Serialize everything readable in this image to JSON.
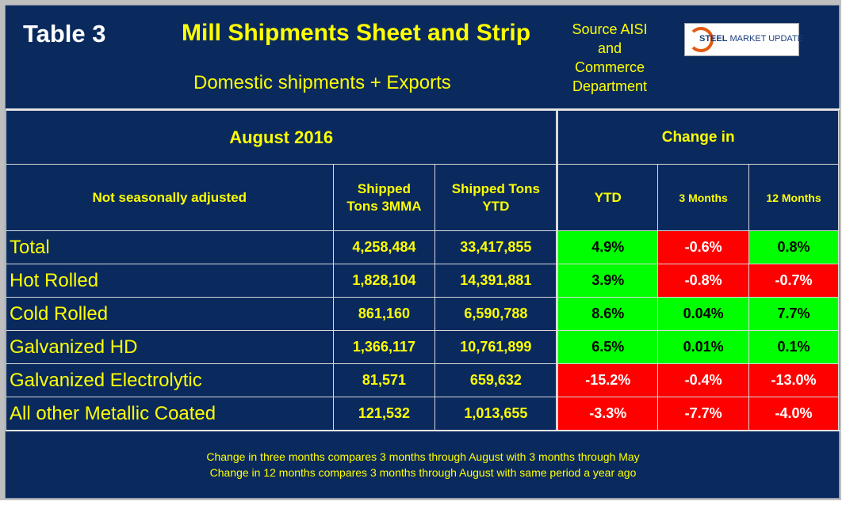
{
  "header": {
    "table_label": "Table 3",
    "title": "Mill Shipments Sheet and Strip",
    "subtitle": "Domestic shipments + Exports",
    "source_lines": [
      "Source AISI",
      "and",
      "Commerce",
      "Department"
    ],
    "logo": {
      "brand_bold": "STEEL",
      "brand_rest": "MARKET UPDATE"
    }
  },
  "table": {
    "period": "August 2016",
    "change_in": "Change in",
    "columns": {
      "category": "Not seasonally adjusted",
      "shipped_3mma": [
        "Shipped",
        "Tons 3MMA"
      ],
      "shipped_ytd": [
        "Shipped Tons",
        "YTD"
      ],
      "ytd": "YTD",
      "three_months": "3 Months",
      "twelve_months": "12 Months"
    },
    "rows": [
      {
        "name": "Total",
        "tons_3mma": "4,258,484",
        "tons_ytd": "33,417,855",
        "ytd": "4.9%",
        "m3": "-0.6%",
        "m12": "0.8%"
      },
      {
        "name": "Hot Rolled",
        "tons_3mma": "1,828,104",
        "tons_ytd": "14,391,881",
        "ytd": "3.9%",
        "m3": "-0.8%",
        "m12": "-0.7%"
      },
      {
        "name": "Cold Rolled",
        "tons_3mma": "861,160",
        "tons_ytd": "6,590,788",
        "ytd": "8.6%",
        "m3": "0.04%",
        "m12": "7.7%"
      },
      {
        "name": "Galvanized HD",
        "tons_3mma": "1,366,117",
        "tons_ytd": "10,761,899",
        "ytd": "6.5%",
        "m3": "0.01%",
        "m12": "0.1%"
      },
      {
        "name": "Galvanized Electrolytic",
        "tons_3mma": "81,571",
        "tons_ytd": "659,632",
        "ytd": "-15.2%",
        "m3": "-0.4%",
        "m12": "-13.0%"
      },
      {
        "name": "All other Metallic Coated",
        "tons_3mma": "121,532",
        "tons_ytd": "1,013,655",
        "ytd": "-3.3%",
        "m3": "-7.7%",
        "m12": "-4.0%"
      }
    ]
  },
  "footnotes": [
    "Change in three months compares 3 months through August with 3 months through May",
    "Change in 12 months compares 3 months through August with same period a year ago"
  ],
  "colors": {
    "background": "#0a2a5e",
    "text": "#ffff00",
    "positive": "#00ff00",
    "negative": "#ff0000"
  }
}
